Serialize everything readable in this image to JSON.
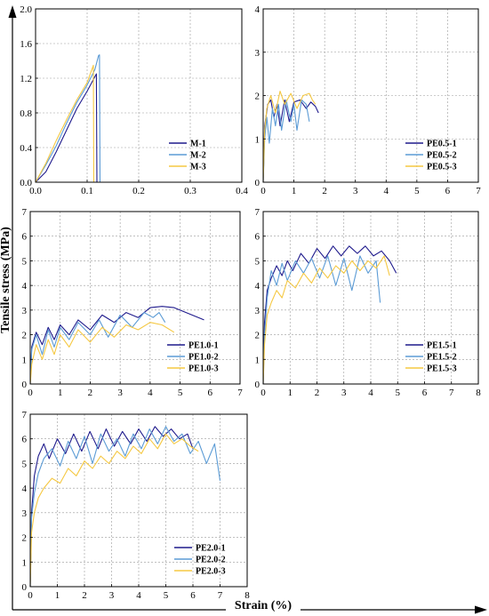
{
  "figure": {
    "ylabel": "Tensile stress (MPa)",
    "xlabel": "Strain (%)"
  },
  "colors": {
    "series1": "#1f1a8c",
    "series2": "#5b9bd5",
    "series3": "#f5c842",
    "grid": "#9a9a9a",
    "axis": "#000000"
  },
  "chart_data": [
    {
      "id": "M",
      "type": "line",
      "xlim": [
        0,
        0.4
      ],
      "ylim": [
        0,
        2.0
      ],
      "xticks": [
        "0.0",
        "0.1",
        "0.2",
        "0.3",
        "0.4"
      ],
      "yticks": [
        "0.0",
        "0.4",
        "0.8",
        "1.2",
        "1.6",
        "2.0"
      ],
      "grid": true,
      "legend_position": "bottom-right",
      "series": [
        {
          "name": "M-1",
          "x": [
            0,
            0.02,
            0.04,
            0.06,
            0.08,
            0.1,
            0.118,
            0.119
          ],
          "y": [
            0,
            0.12,
            0.35,
            0.6,
            0.85,
            1.05,
            1.25,
            0
          ]
        },
        {
          "name": "M-2",
          "x": [
            0,
            0.02,
            0.04,
            0.06,
            0.08,
            0.1,
            0.115,
            0.122,
            0.124,
            0.125
          ],
          "y": [
            0,
            0.2,
            0.42,
            0.68,
            0.92,
            1.12,
            1.3,
            1.46,
            1.47,
            0
          ]
        },
        {
          "name": "M-3",
          "x": [
            0,
            0.02,
            0.04,
            0.06,
            0.08,
            0.1,
            0.112,
            0.113
          ],
          "y": [
            0,
            0.22,
            0.48,
            0.72,
            0.95,
            1.15,
            1.35,
            0
          ]
        }
      ]
    },
    {
      "id": "PE0.5",
      "type": "line",
      "xlim": [
        0,
        7
      ],
      "ylim": [
        0,
        4
      ],
      "xticks": [
        "0",
        "1",
        "2",
        "3",
        "4",
        "5",
        "6",
        "7"
      ],
      "yticks": [
        "0",
        "1",
        "2",
        "3",
        "4"
      ],
      "grid": true,
      "legend_position": "bottom-right",
      "series": [
        {
          "name": "PE0.5-1",
          "x": [
            0,
            0.05,
            0.15,
            0.25,
            0.35,
            0.45,
            0.55,
            0.7,
            0.85,
            1.0,
            1.2,
            1.4,
            1.55,
            1.7,
            1.8
          ],
          "y": [
            0,
            1.3,
            1.8,
            1.9,
            1.5,
            1.8,
            1.3,
            1.9,
            1.4,
            1.85,
            1.9,
            1.7,
            1.85,
            1.75,
            1.6
          ]
        },
        {
          "name": "PE0.5-2",
          "x": [
            0,
            0.05,
            0.12,
            0.2,
            0.3,
            0.4,
            0.5,
            0.6,
            0.75,
            0.9,
            1.0,
            1.1,
            1.25,
            1.4,
            1.5
          ],
          "y": [
            0,
            1.0,
            1.5,
            0.9,
            1.7,
            1.3,
            1.8,
            1.2,
            1.9,
            1.4,
            1.8,
            1.2,
            1.9,
            1.8,
            1.4
          ]
        },
        {
          "name": "PE0.5-3",
          "x": [
            0,
            0.05,
            0.12,
            0.25,
            0.4,
            0.55,
            0.7,
            0.9,
            1.1,
            1.3,
            1.5,
            1.6,
            1.7
          ],
          "y": [
            0,
            1.2,
            1.7,
            2.0,
            1.6,
            2.1,
            1.8,
            2.05,
            1.7,
            2.0,
            2.05,
            1.9,
            1.8
          ]
        }
      ]
    },
    {
      "id": "PE1.0",
      "type": "line",
      "xlim": [
        0,
        7
      ],
      "ylim": [
        0,
        7
      ],
      "xticks": [
        "0",
        "1",
        "2",
        "3",
        "4",
        "5",
        "6",
        "7"
      ],
      "yticks": [
        "0",
        "1",
        "2",
        "3",
        "4",
        "5",
        "6",
        "7"
      ],
      "grid": true,
      "legend_position": "bottom-right",
      "series": [
        {
          "name": "PE1.0-1",
          "x": [
            0,
            0.05,
            0.2,
            0.4,
            0.6,
            0.8,
            1.0,
            1.3,
            1.6,
            2.0,
            2.4,
            2.8,
            3.2,
            3.6,
            4.0,
            4.4,
            4.8,
            5.2,
            5.5,
            5.8
          ],
          "y": [
            0,
            1.5,
            2.1,
            1.6,
            2.3,
            1.8,
            2.4,
            2.0,
            2.6,
            2.2,
            2.8,
            2.5,
            2.9,
            2.7,
            3.1,
            3.15,
            3.1,
            2.9,
            2.75,
            2.6
          ]
        },
        {
          "name": "PE1.0-2",
          "x": [
            0,
            0.05,
            0.2,
            0.4,
            0.6,
            0.8,
            1.0,
            1.3,
            1.6,
            2.0,
            2.3,
            2.6,
            3.0,
            3.4,
            3.8,
            4.1,
            4.3,
            4.5
          ],
          "y": [
            0,
            1.4,
            2.0,
            1.2,
            2.2,
            1.5,
            2.3,
            1.8,
            2.5,
            2.0,
            2.6,
            1.9,
            2.8,
            2.3,
            2.9,
            2.7,
            2.9,
            2.5
          ]
        },
        {
          "name": "PE1.0-3",
          "x": [
            0,
            0.05,
            0.2,
            0.4,
            0.6,
            0.8,
            1.0,
            1.3,
            1.6,
            2.0,
            2.4,
            2.8,
            3.2,
            3.6,
            4.0,
            4.4,
            4.8
          ],
          "y": [
            0,
            0.8,
            1.6,
            1.0,
            1.8,
            1.2,
            2.0,
            1.5,
            2.2,
            1.7,
            2.3,
            1.9,
            2.4,
            2.2,
            2.5,
            2.4,
            2.1
          ]
        }
      ]
    },
    {
      "id": "PE1.5",
      "type": "line",
      "xlim": [
        0,
        8
      ],
      "ylim": [
        0,
        7
      ],
      "xticks": [
        "0",
        "1",
        "2",
        "3",
        "4",
        "5",
        "6",
        "7",
        "8"
      ],
      "yticks": [
        "0",
        "1",
        "2",
        "3",
        "4",
        "5",
        "6",
        "7"
      ],
      "grid": true,
      "legend_position": "bottom-right",
      "series": [
        {
          "name": "PE1.5-1",
          "x": [
            0,
            0.05,
            0.15,
            0.3,
            0.5,
            0.7,
            0.9,
            1.1,
            1.4,
            1.7,
            2.0,
            2.3,
            2.6,
            2.9,
            3.2,
            3.5,
            3.8,
            4.1,
            4.4,
            4.7,
            4.95
          ],
          "y": [
            0,
            2.5,
            3.8,
            4.3,
            4.8,
            4.4,
            5.0,
            4.6,
            5.3,
            4.9,
            5.5,
            5.1,
            5.6,
            5.2,
            5.6,
            5.3,
            5.6,
            5.2,
            5.4,
            5.0,
            4.5
          ]
        },
        {
          "name": "PE1.5-2",
          "x": [
            0,
            0.05,
            0.15,
            0.3,
            0.5,
            0.7,
            0.9,
            1.2,
            1.5,
            1.8,
            2.1,
            2.4,
            2.7,
            3.0,
            3.3,
            3.6,
            3.9,
            4.2,
            4.35
          ],
          "y": [
            0,
            2.0,
            3.5,
            4.6,
            4.0,
            4.9,
            4.2,
            5.0,
            4.5,
            5.1,
            4.3,
            5.2,
            4.0,
            5.1,
            3.8,
            5.2,
            4.5,
            5.0,
            3.3
          ]
        },
        {
          "name": "PE1.5-3",
          "x": [
            0,
            0.05,
            0.15,
            0.3,
            0.5,
            0.7,
            0.9,
            1.2,
            1.5,
            1.8,
            2.1,
            2.4,
            2.7,
            3.0,
            3.3,
            3.6,
            3.9,
            4.2,
            4.5,
            4.7
          ],
          "y": [
            0,
            1.6,
            2.8,
            3.3,
            3.8,
            3.5,
            4.2,
            3.9,
            4.5,
            4.1,
            4.7,
            4.3,
            4.8,
            4.5,
            5.0,
            4.6,
            5.0,
            4.7,
            5.2,
            4.4
          ]
        }
      ]
    },
    {
      "id": "PE2.0",
      "type": "line",
      "xlim": [
        0,
        8
      ],
      "ylim": [
        0,
        7
      ],
      "xticks": [
        "0",
        "1",
        "2",
        "3",
        "4",
        "5",
        "6",
        "7",
        "8"
      ],
      "yticks": [
        "0",
        "1",
        "2",
        "3",
        "4",
        "5",
        "6",
        "7"
      ],
      "grid": true,
      "legend_position": "bottom-right",
      "series": [
        {
          "name": "PE2.0-1",
          "x": [
            0,
            0.05,
            0.15,
            0.3,
            0.5,
            0.7,
            1.0,
            1.3,
            1.6,
            1.9,
            2.2,
            2.5,
            2.8,
            3.1,
            3.4,
            3.7,
            4.0,
            4.3,
            4.6,
            4.9,
            5.2,
            5.5,
            5.8,
            6.0
          ],
          "y": [
            0,
            3.0,
            4.5,
            5.3,
            5.8,
            5.2,
            6.0,
            5.4,
            6.2,
            5.5,
            6.3,
            5.6,
            6.4,
            5.7,
            6.3,
            5.8,
            6.4,
            5.9,
            6.5,
            6.1,
            6.4,
            6.0,
            6.2,
            5.6
          ]
        },
        {
          "name": "PE2.0-2",
          "x": [
            0,
            0.05,
            0.15,
            0.3,
            0.5,
            0.8,
            1.1,
            1.4,
            1.7,
            2.0,
            2.3,
            2.6,
            2.9,
            3.2,
            3.5,
            3.8,
            4.1,
            4.4,
            4.7,
            5.0,
            5.3,
            5.6,
            5.9,
            6.2,
            6.5,
            6.8,
            7.0
          ],
          "y": [
            0,
            2.8,
            3.8,
            4.6,
            5.2,
            5.6,
            4.9,
            5.9,
            5.2,
            6.1,
            5.0,
            6.2,
            5.5,
            6.0,
            5.3,
            6.2,
            5.6,
            6.4,
            5.8,
            6.5,
            5.9,
            6.2,
            5.4,
            5.9,
            5.0,
            5.8,
            4.3
          ]
        },
        {
          "name": "PE2.0-3",
          "x": [
            0,
            0.05,
            0.15,
            0.3,
            0.5,
            0.8,
            1.1,
            1.4,
            1.7,
            2.0,
            2.3,
            2.6,
            2.9,
            3.2,
            3.5,
            3.8,
            4.1,
            4.4,
            4.7,
            5.0,
            5.3,
            5.6,
            5.9,
            6.2
          ],
          "y": [
            0,
            2.2,
            3.0,
            3.6,
            4.0,
            4.4,
            4.2,
            4.8,
            4.5,
            5.1,
            4.8,
            5.3,
            5.0,
            5.5,
            5.2,
            5.7,
            5.4,
            6.0,
            5.6,
            6.2,
            5.8,
            6.0,
            5.7,
            5.5
          ]
        }
      ]
    }
  ]
}
